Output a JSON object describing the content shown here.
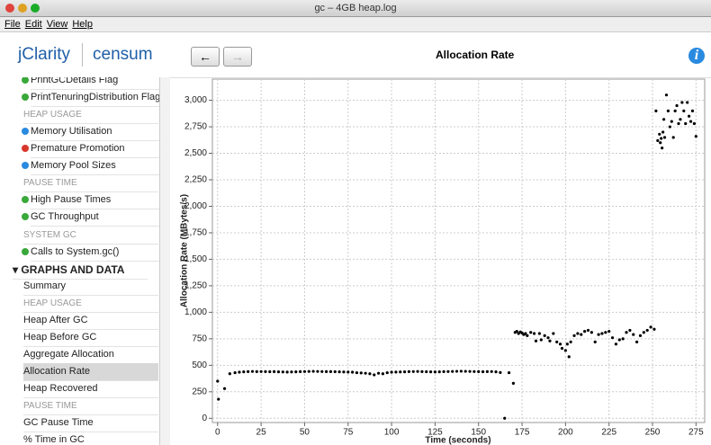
{
  "window": {
    "title": "gc – 4GB heap.log",
    "menu": [
      "File",
      "Edit",
      "View",
      "Help"
    ]
  },
  "header": {
    "brand": "jClarity",
    "product": "censum",
    "page_title": "Allocation Rate"
  },
  "sidebar": {
    "items": [
      "PrintGCDetails Flag",
      "PrintTenuringDistribution Flag",
      "HEAP USAGE",
      "Memory Utilisation",
      "Premature Promotion",
      "Memory Pool Sizes",
      "PAUSE TIME",
      "High Pause Times",
      "GC Throughput",
      "SYSTEM GC",
      "Calls to System.gc()",
      "GRAPHS AND DATA",
      "Summary",
      "HEAP USAGE",
      "Heap After GC",
      "Heap Before GC",
      "Aggregate Allocation",
      "Allocation Rate",
      "Heap Recovered",
      "PAUSE TIME",
      "GC Pause Time",
      "% Time in GC"
    ]
  },
  "chart_data": {
    "type": "scatter",
    "x_label": "Time (seconds)",
    "y_label": "Allocation Rate (MBytes/s)",
    "color": "#000000",
    "grid": true,
    "xlim": [
      -3,
      280
    ],
    "ylim": [
      -40,
      3200
    ],
    "xticks": [
      0,
      25,
      50,
      75,
      100,
      125,
      150,
      175,
      200,
      225,
      250,
      275
    ],
    "yticks": [
      0,
      250,
      500,
      750,
      {
        "value": 1000,
        "label": "1,000"
      },
      {
        "value": 1250,
        "label": "1,250"
      },
      {
        "value": 1500,
        "label": "1,500"
      },
      {
        "value": 1750,
        "label": "1,750"
      },
      {
        "value": 2000,
        "label": "2,000"
      },
      {
        "value": 2250,
        "label": "2,250"
      },
      {
        "value": 2500,
        "label": "2,500"
      },
      {
        "value": 2750,
        "label": "2,750"
      },
      {
        "value": 3000,
        "label": "3,000"
      }
    ],
    "x": [
      0,
      0.5,
      4,
      7,
      10,
      12.5,
      15,
      17.5,
      20,
      22.5,
      25,
      27.5,
      30,
      32.5,
      35,
      37.5,
      40,
      42.5,
      45,
      47.5,
      50,
      52.5,
      55,
      57.5,
      60,
      62.5,
      65,
      67.5,
      70,
      72.5,
      75,
      77.5,
      80,
      82.5,
      85,
      87.5,
      90,
      92.5,
      95,
      97.5,
      100,
      102.5,
      105,
      107.5,
      110,
      112.5,
      115,
      117.5,
      120,
      122.5,
      125,
      127.5,
      130,
      132.5,
      135,
      137.5,
      140,
      142.5,
      145,
      147.5,
      150,
      152.5,
      155,
      157.5,
      160,
      162.5,
      165,
      167.5,
      170,
      171,
      172,
      173,
      174,
      175,
      176,
      177,
      178,
      180,
      182,
      183,
      185,
      186,
      188,
      190,
      191,
      193,
      195,
      197,
      198,
      200,
      201,
      202,
      203,
      205,
      207,
      209,
      211,
      213,
      215,
      217,
      219,
      221,
      223,
      225,
      227,
      229,
      231,
      233,
      235,
      237,
      239,
      241,
      243,
      245,
      247,
      249,
      251,
      252,
      253,
      254,
      254.5,
      255,
      255.5,
      256,
      256.5,
      257,
      258,
      259,
      260,
      261,
      262,
      263,
      264,
      265,
      266,
      267,
      268,
      269,
      270,
      271,
      272,
      273,
      274,
      275
    ],
    "values": [
      350,
      180,
      280,
      420,
      430,
      435,
      438,
      440,
      442,
      440,
      441,
      440,
      439,
      440,
      438,
      437,
      436,
      437,
      438,
      440,
      441,
      442,
      443,
      442,
      441,
      440,
      440,
      439,
      438,
      437,
      436,
      435,
      430,
      428,
      425,
      420,
      410,
      425,
      420,
      430,
      435,
      436,
      437,
      438,
      440,
      441,
      442,
      440,
      439,
      438,
      437,
      438,
      440,
      441,
      442,
      443,
      444,
      443,
      442,
      441,
      440,
      439,
      440,
      441,
      438,
      432,
      0,
      430,
      330,
      810,
      820,
      800,
      815,
      805,
      790,
      800,
      780,
      810,
      800,
      730,
      800,
      740,
      780,
      760,
      730,
      800,
      720,
      700,
      660,
      640,
      700,
      580,
      720,
      780,
      800,
      790,
      820,
      830,
      810,
      720,
      790,
      800,
      810,
      820,
      760,
      700,
      740,
      750,
      810,
      830,
      790,
      720,
      780,
      810,
      830,
      860,
      840,
      2900,
      2620,
      2680,
      2600,
      2640,
      2550,
      2700,
      2820,
      2650,
      3050,
      2900,
      2750,
      2800,
      2650,
      2900,
      2950,
      2780,
      2820,
      2980,
      2900,
      2780,
      2980,
      2850,
      2800,
      2900,
      2780,
      2660
    ]
  }
}
